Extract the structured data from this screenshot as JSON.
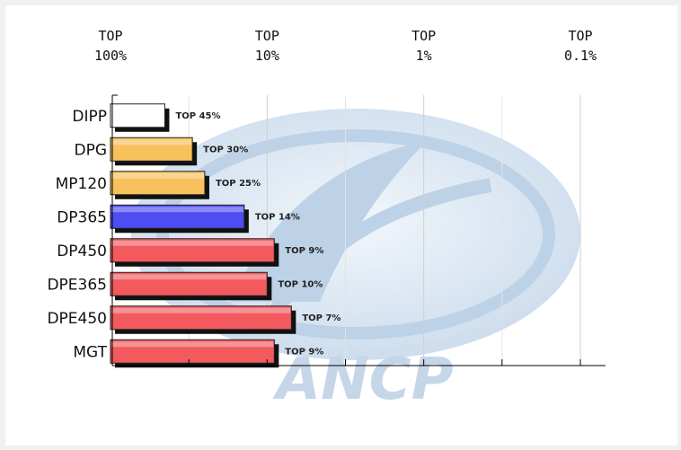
{
  "chart_data": {
    "type": "bar",
    "orientation": "horizontal",
    "scale": "log",
    "x_axis_position": "top",
    "x_ticks": [
      {
        "value": 100,
        "label_line1": "TOP",
        "label_line2": "100%"
      },
      {
        "value": 10,
        "label_line1": "TOP",
        "label_line2": "10%"
      },
      {
        "value": 1,
        "label_line1": "TOP",
        "label_line2": "1%"
      },
      {
        "value": 0.1,
        "label_line1": "TOP",
        "label_line2": "0.1%"
      }
    ],
    "xlim": [
      100,
      0.1
    ],
    "grid": true,
    "categories": [
      "DIPP",
      "DPG",
      "MP120",
      "DP365",
      "DP450",
      "DPE365",
      "DPE450",
      "MGT"
    ],
    "values": [
      45,
      30,
      25,
      14,
      9,
      10,
      7,
      9
    ],
    "data_labels": [
      "TOP 45%",
      "TOP 30%",
      "TOP 25%",
      "TOP 14%",
      "TOP 9%",
      "TOP 10%",
      "TOP 7%",
      "TOP 9%"
    ],
    "bar_colors": [
      "#ffffff",
      "#f7c15c",
      "#f7c15c",
      "#4d4df2",
      "#f25a5e",
      "#f25a5e",
      "#f25a5e",
      "#f25a5e"
    ],
    "watermark": "ANCP"
  }
}
